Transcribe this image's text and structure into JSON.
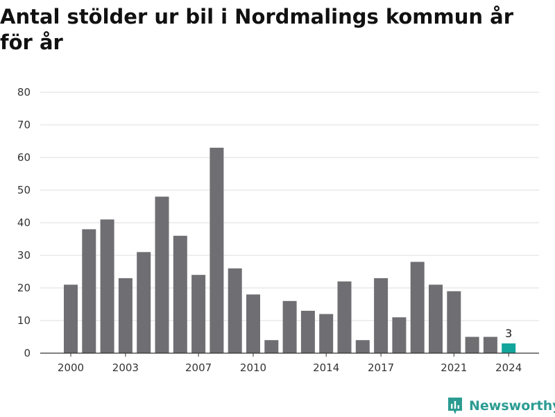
{
  "title": "Antal stölder ur bil i Nordmalings kommun år för år",
  "brand": {
    "name": "Newsworthy",
    "icon": "newsworthy-logo-icon"
  },
  "colors": {
    "bar": "#6f6e73",
    "highlight": "#13a59c",
    "grid": "#dedede",
    "axis": "#333333"
  },
  "chart_data": {
    "type": "bar",
    "title": "Antal stölder ur bil i Nordmalings kommun år för år",
    "xlabel": "",
    "ylabel": "",
    "categories": [
      "2000",
      "2001",
      "2002",
      "2003",
      "2004",
      "2005",
      "2006",
      "2007",
      "2008",
      "2009",
      "2010",
      "2011",
      "2012",
      "2013",
      "2014",
      "2015",
      "2016",
      "2017",
      "2018",
      "2019",
      "2020",
      "2021",
      "2022",
      "2023",
      "2024"
    ],
    "values": [
      21,
      38,
      41,
      23,
      31,
      48,
      36,
      24,
      63,
      26,
      18,
      4,
      16,
      13,
      12,
      22,
      4,
      23,
      11,
      28,
      21,
      19,
      5,
      5,
      3
    ],
    "x_tick_labels": [
      "2000",
      "2003",
      "2007",
      "2010",
      "2014",
      "2017",
      "2021",
      "2024"
    ],
    "y_ticks": [
      0,
      10,
      20,
      30,
      40,
      50,
      60,
      70,
      80
    ],
    "ylim": [
      0,
      80
    ],
    "grid": true,
    "highlight": {
      "category": "2024",
      "label": "3"
    }
  }
}
